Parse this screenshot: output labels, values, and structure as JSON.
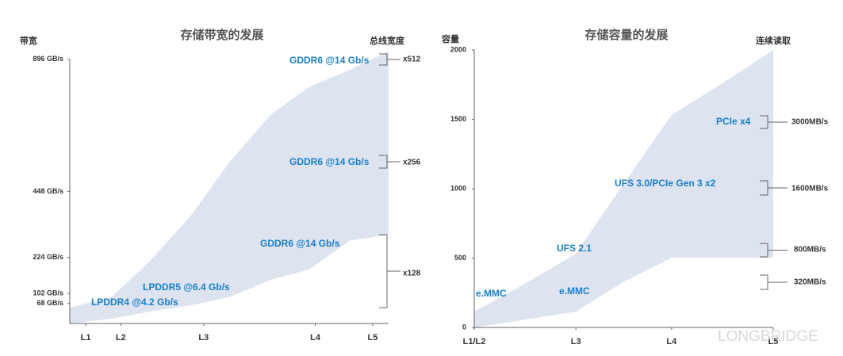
{
  "chart_data": [
    {
      "type": "area-range",
      "title": "存储带宽的发展",
      "y_label": "带宽",
      "y2_label": "总线宽度",
      "xlim": [
        0,
        100
      ],
      "ylim": [
        0,
        960
      ],
      "xticks": [
        {
          "value": 5,
          "label": "L1"
        },
        {
          "value": 16,
          "label": "L2"
        },
        {
          "value": 42,
          "label": "L3"
        },
        {
          "value": 77,
          "label": "L4"
        },
        {
          "value": 95,
          "label": "L5"
        }
      ],
      "yticks": [
        {
          "value": 68,
          "label": "68 GB/s"
        },
        {
          "value": 102,
          "label": "102 GB/s"
        },
        {
          "value": 224,
          "label": "224 GB/s"
        },
        {
          "value": 448,
          "label": "448 GB/s"
        },
        {
          "value": 896,
          "label": "896 GB/s"
        }
      ],
      "color": "#dde3ef",
      "bounds": [
        {
          "x": [
            0,
            13,
            25,
            38,
            50,
            63,
            75,
            88,
            100
          ],
          "values": [
            54,
            89,
            210,
            366,
            546,
            708,
            802,
            861,
            923
          ]
        },
        {
          "x": [
            0,
            13,
            25,
            38,
            50,
            63,
            75,
            88,
            100
          ],
          "values": [
            0,
            16,
            40,
            62,
            89,
            148,
            183,
            282,
            301
          ]
        }
      ],
      "annotations": [
        "GDDR6 @14 Gb/s",
        "GDDR6 @14 Gb/s",
        "GDDR6 @14 Gb/s",
        "LPDDR5 @6.4 Gb/s",
        "LPDDR4 @4.2 Gb/s"
      ],
      "side_labels": [
        "x512",
        "x256",
        "x128"
      ]
    },
    {
      "type": "area-range",
      "title": "存储容量的发展",
      "y_label": "容量",
      "y2_label": "连续读取",
      "xlim": [
        0,
        100
      ],
      "ylim": [
        0,
        2000
      ],
      "xticks": [
        {
          "value": 0,
          "label": "L1/L2"
        },
        {
          "value": 34,
          "label": "L3"
        },
        {
          "value": 66,
          "label": "L4"
        },
        {
          "value": 100,
          "label": "L5"
        }
      ],
      "yticks": [
        0,
        500,
        1000,
        1500,
        2000
      ],
      "color": "#dde3ef",
      "bounds": [
        {
          "x": [
            0,
            16,
            34,
            43,
            54,
            66,
            83,
            100
          ],
          "values": [
            114,
            303,
            531,
            817,
            1160,
            1531,
            1760,
            2000
          ]
        },
        {
          "x": [
            0,
            34,
            50,
            66,
            100
          ],
          "values": [
            0,
            114,
            331,
            503,
            503
          ]
        }
      ],
      "annotations": [
        "PCIe x4",
        "UFS 3.0/PCIe Gen 3 x2",
        "UFS 2.1",
        "e.MMC",
        "e.MMC"
      ],
      "side_labels": [
        "3000MB/s",
        "1600MB/s",
        "800MB/s",
        "320MB/s"
      ],
      "watermark": "LONGBRIDGE"
    }
  ]
}
